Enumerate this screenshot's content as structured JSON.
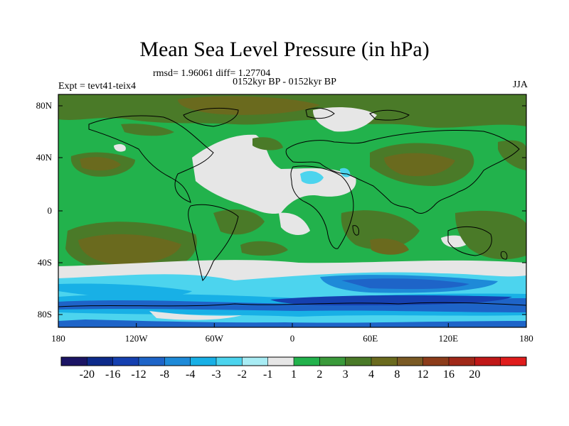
{
  "title": "Mean Sea Level Pressure (in hPa)",
  "stats": "rmsd= 1.96061 diff= 1.27704",
  "left_label": "Expt = tevt41-teix4",
  "center_label": "0152kyr BP - 0152kyr BP",
  "right_label": "JJA",
  "lat_labels": [
    "80N",
    "40N",
    "0",
    "40S",
    "80S"
  ],
  "lon_labels": [
    "180",
    "120W",
    "60W",
    "0",
    "60E",
    "120E",
    "180"
  ],
  "colorbar": {
    "colors": [
      "#1b1464",
      "#0d2a8a",
      "#1540b0",
      "#1e64c8",
      "#1e8ad8",
      "#18b0e6",
      "#4cd4ee",
      "#a8ecf4",
      "#e6e6e6",
      "#22b24c",
      "#3a9a3a",
      "#4a7a28",
      "#6a6a1e",
      "#7a5a24",
      "#8c3c1a",
      "#a02818",
      "#c01818",
      "#e01c1c"
    ],
    "labels": [
      "-20",
      "-16",
      "-12",
      "-8",
      "-4",
      "-3",
      "-2",
      "-1",
      "1",
      "2",
      "3",
      "4",
      "8",
      "12",
      "16",
      "20"
    ]
  },
  "chart_data": {
    "type": "heatmap",
    "title": "Mean Sea Level Pressure (in hPa)",
    "subtitle": "0152kyr BP - 0152kyr BP",
    "experiment": "Expt = tevt41-teix4",
    "season": "JJA",
    "rmsd": 1.96061,
    "diff": 1.27704,
    "x_range": [
      -180,
      180
    ],
    "y_range": [
      -90,
      90
    ],
    "x_ticks": [
      "180",
      "120W",
      "60W",
      "0",
      "60E",
      "120E",
      "180"
    ],
    "y_ticks": [
      "80N",
      "40N",
      "0",
      "40S",
      "80S"
    ],
    "levels": [
      -20,
      -16,
      -12,
      -8,
      -4,
      -3,
      -2,
      -1,
      1,
      2,
      3,
      4,
      8,
      12,
      16,
      20
    ]
  }
}
